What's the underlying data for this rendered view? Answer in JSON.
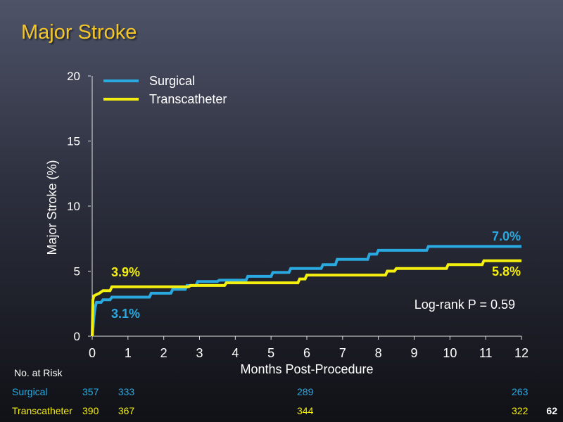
{
  "slide": {
    "title": "Major Stroke",
    "page_number": "62"
  },
  "chart_data": {
    "type": "line",
    "xlabel": "Months Post-Procedure",
    "ylabel": "Major Stroke (%)",
    "xlim": [
      0,
      12
    ],
    "ylim": [
      0,
      20
    ],
    "x_ticks": [
      0,
      1,
      2,
      3,
      4,
      5,
      6,
      7,
      8,
      9,
      10,
      11,
      12
    ],
    "y_ticks": [
      0,
      5,
      10,
      15,
      20
    ],
    "legend": "top-left",
    "annotation": "Log-rank P = 0.59",
    "series": [
      {
        "name": "Surgical",
        "color": "#2aa9e0",
        "end_label": "7.0%",
        "early_label": "3.1%",
        "points": [
          [
            0,
            0
          ],
          [
            0.02,
            0.5
          ],
          [
            0.05,
            1.5
          ],
          [
            0.08,
            2.2
          ],
          [
            0.12,
            2.6
          ],
          [
            0.25,
            2.6
          ],
          [
            0.3,
            2.8
          ],
          [
            0.5,
            2.8
          ],
          [
            0.55,
            3.0
          ],
          [
            1.6,
            3.0
          ],
          [
            1.65,
            3.3
          ],
          [
            2.2,
            3.3
          ],
          [
            2.25,
            3.6
          ],
          [
            2.6,
            3.6
          ],
          [
            2.65,
            3.9
          ],
          [
            2.9,
            3.9
          ],
          [
            2.95,
            4.2
          ],
          [
            3.5,
            4.2
          ],
          [
            3.55,
            4.3
          ],
          [
            4.3,
            4.3
          ],
          [
            4.35,
            4.6
          ],
          [
            5.0,
            4.6
          ],
          [
            5.05,
            4.9
          ],
          [
            5.5,
            4.9
          ],
          [
            5.55,
            5.2
          ],
          [
            6.4,
            5.2
          ],
          [
            6.45,
            5.5
          ],
          [
            6.8,
            5.5
          ],
          [
            6.85,
            5.9
          ],
          [
            7.7,
            5.9
          ],
          [
            7.75,
            6.3
          ],
          [
            7.95,
            6.3
          ],
          [
            8.0,
            6.6
          ],
          [
            9.35,
            6.6
          ],
          [
            9.4,
            6.9
          ],
          [
            12.0,
            6.9
          ]
        ]
      },
      {
        "name": "Transcatheter",
        "color": "#f5ef0f",
        "end_label": "5.8%",
        "early_label": "3.9%",
        "points": [
          [
            0,
            0
          ],
          [
            0.02,
            2.8
          ],
          [
            0.05,
            3.1
          ],
          [
            0.12,
            3.2
          ],
          [
            0.2,
            3.3
          ],
          [
            0.3,
            3.5
          ],
          [
            0.5,
            3.5
          ],
          [
            0.55,
            3.8
          ],
          [
            2.7,
            3.8
          ],
          [
            2.75,
            3.9
          ],
          [
            3.7,
            3.9
          ],
          [
            3.75,
            4.1
          ],
          [
            5.75,
            4.1
          ],
          [
            5.8,
            4.4
          ],
          [
            5.95,
            4.4
          ],
          [
            6.0,
            4.7
          ],
          [
            8.2,
            4.7
          ],
          [
            8.25,
            5.0
          ],
          [
            8.45,
            5.0
          ],
          [
            8.5,
            5.2
          ],
          [
            9.9,
            5.2
          ],
          [
            9.95,
            5.5
          ],
          [
            10.9,
            5.5
          ],
          [
            10.95,
            5.8
          ],
          [
            12.0,
            5.8
          ]
        ]
      }
    ]
  },
  "risk_table": {
    "header": "No. at Risk",
    "rows": [
      {
        "name": "Surgical",
        "color": "#2aa9e0",
        "values": [
          {
            "x": 0,
            "n": "357"
          },
          {
            "x": 1,
            "n": "333"
          },
          {
            "x": 6,
            "n": "289"
          },
          {
            "x": 12,
            "n": "263"
          }
        ]
      },
      {
        "name": "Transcatheter",
        "color": "#f5ef0f",
        "values": [
          {
            "x": 0,
            "n": "390"
          },
          {
            "x": 1,
            "n": "367"
          },
          {
            "x": 6,
            "n": "344"
          },
          {
            "x": 12,
            "n": "322"
          }
        ]
      }
    ]
  }
}
